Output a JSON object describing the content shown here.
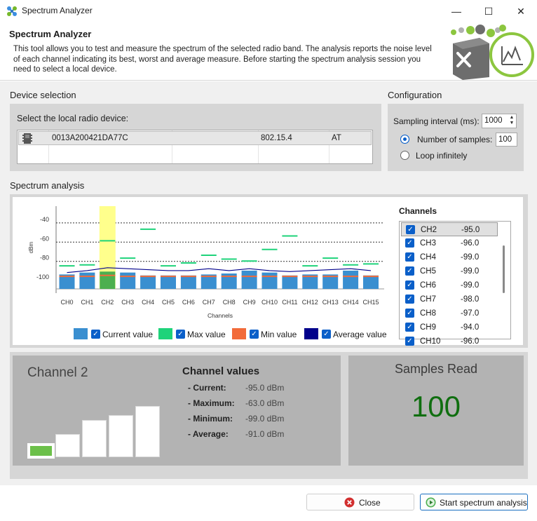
{
  "window": {
    "title": "Spectrum Analyzer",
    "min_glyph": "—",
    "max_glyph": "☐",
    "close_glyph": "✕",
    "app_icon": "network-nodes-icon"
  },
  "header": {
    "title": "Spectrum Analyzer",
    "description": "This tool allows you to test and measure the spectrum of the selected radio band. The analysis reports the noise level of each channel indicating its best, worst and average measure. Before starting the spectrum analysis session you need to select a local device.",
    "logo_icon": "tools-chart-logo-icon"
  },
  "device_selection": {
    "heading": "Device selection",
    "prompt": "Select the local radio device:",
    "devices": [
      {
        "icon": "radio-module-icon",
        "address": "0013A200421DA77C",
        "protocol": "802.15.4",
        "mode": "AT"
      }
    ]
  },
  "configuration": {
    "heading": "Configuration",
    "sampling_label": "Sampling interval (ms):",
    "sampling_value": "1000",
    "num_samples_label": "Number of samples:",
    "num_samples_value": "100",
    "loop_label": "Loop infinitely",
    "selected_mode": "number_of_samples"
  },
  "spectrum": {
    "heading": "Spectrum analysis",
    "channels_heading": "Channels",
    "channels": [
      {
        "name": "CH2",
        "value": "-95.0"
      },
      {
        "name": "CH3",
        "value": "-96.0"
      },
      {
        "name": "CH4",
        "value": "-99.0"
      },
      {
        "name": "CH5",
        "value": "-99.0"
      },
      {
        "name": "CH6",
        "value": "-99.0"
      },
      {
        "name": "CH7",
        "value": "-98.0"
      },
      {
        "name": "CH8",
        "value": "-97.0"
      },
      {
        "name": "CH9",
        "value": "-94.0"
      },
      {
        "name": "CH10",
        "value": "-96.0"
      }
    ],
    "legend": [
      {
        "label": "Current value",
        "color": "#3a8fd0"
      },
      {
        "label": "Max value",
        "color": "#1ed37a"
      },
      {
        "label": "Min value",
        "color": "#f26b3a"
      },
      {
        "label": "Average value",
        "color": "#00008b"
      }
    ]
  },
  "chart_data": {
    "type": "bar",
    "title": "",
    "xlabel": "Channels",
    "ylabel": "dBm",
    "ylim": [
      -113,
      -27
    ],
    "yticks": [
      "-40",
      "-60",
      "-80",
      "-100"
    ],
    "categories": [
      "CH0",
      "CH1",
      "CH2",
      "CH3",
      "CH4",
      "CH5",
      "CH6",
      "CH7",
      "CH8",
      "CH9",
      "CH10",
      "CH11",
      "CH12",
      "CH13",
      "CH14",
      "CH15"
    ],
    "highlighted_category": "CH2",
    "series": [
      {
        "name": "Current value",
        "values": [
          -98,
          -96,
          -95,
          -96,
          -99,
          -99,
          -99,
          -98,
          -97,
          -94,
          -96,
          -99,
          -98,
          -98,
          -94,
          -99
        ]
      },
      {
        "name": "Max value",
        "values": [
          -89,
          -88,
          -63,
          -81,
          -51,
          -89,
          -86,
          -78,
          -82,
          -84,
          -72,
          -58,
          -89,
          -81,
          -88,
          -87
        ]
      },
      {
        "name": "Min value",
        "values": [
          -100,
          -100,
          -99,
          -100,
          -100,
          -100,
          -100,
          -100,
          -100,
          -100,
          -100,
          -100,
          -100,
          -100,
          -100,
          -100
        ]
      },
      {
        "name": "Average value",
        "values": [
          -96,
          -94,
          -91,
          -92,
          -93,
          -94,
          -94,
          -92,
          -94,
          -92,
          -94,
          -95,
          -94,
          -93,
          -92,
          -94
        ]
      }
    ]
  },
  "channel_detail": {
    "title": "Channel 2",
    "values_heading": "Channel values",
    "rows": [
      {
        "label": "- Current:",
        "value": "-95.0 dBm"
      },
      {
        "label": "- Maximum:",
        "value": "-63.0 dBm"
      },
      {
        "label": "- Minimum:",
        "value": "-99.0 dBm"
      },
      {
        "label": "- Average:",
        "value": "-91.0 dBm"
      }
    ],
    "signal_level": 1,
    "signal_total": 5,
    "signal_color": "#6cc04a"
  },
  "samples": {
    "heading": "Samples Read",
    "value": "100"
  },
  "buttons": {
    "close_label": "Close",
    "close_icon": "close-circle-icon",
    "start_label": "Start spectrum analysis",
    "start_icon": "play-circle-icon"
  }
}
